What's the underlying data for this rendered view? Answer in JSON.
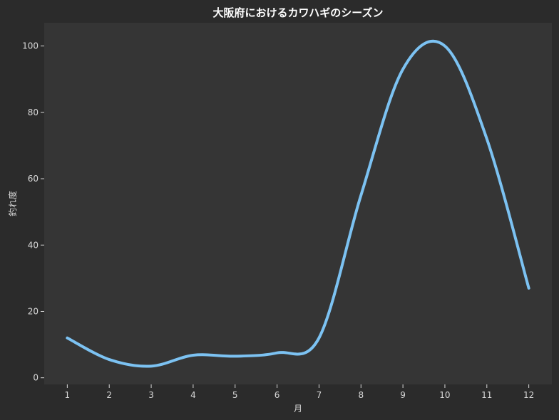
{
  "chart_data": {
    "type": "line",
    "title": "大阪府におけるカワハギのシーズン",
    "xlabel": "月",
    "ylabel": "釣れ度",
    "x": [
      1,
      2,
      3,
      4,
      5,
      6,
      7,
      8,
      9,
      10,
      11,
      12
    ],
    "x_tick_labels": [
      "1",
      "2",
      "3",
      "4",
      "5",
      "6",
      "7",
      "8",
      "9",
      "10",
      "11",
      "12"
    ],
    "xlim": [
      0.45,
      12.55
    ],
    "ylim": [
      -2,
      107
    ],
    "y_ticks": [
      0,
      20,
      40,
      60,
      80,
      100
    ],
    "y_tick_labels": [
      "0",
      "20",
      "40",
      "60",
      "80",
      "100"
    ],
    "series": [
      {
        "values": [
          12,
          5.5,
          3.5,
          6.8,
          6.5,
          7.5,
          12,
          55,
          93,
          100,
          72,
          27
        ],
        "color": "#7cc2f2"
      }
    ],
    "grid": false,
    "colors": {
      "figure_background": "#2b2b2b",
      "plot_background": "#353535",
      "text": "#d8d8d8",
      "title": "#ffffff"
    }
  }
}
